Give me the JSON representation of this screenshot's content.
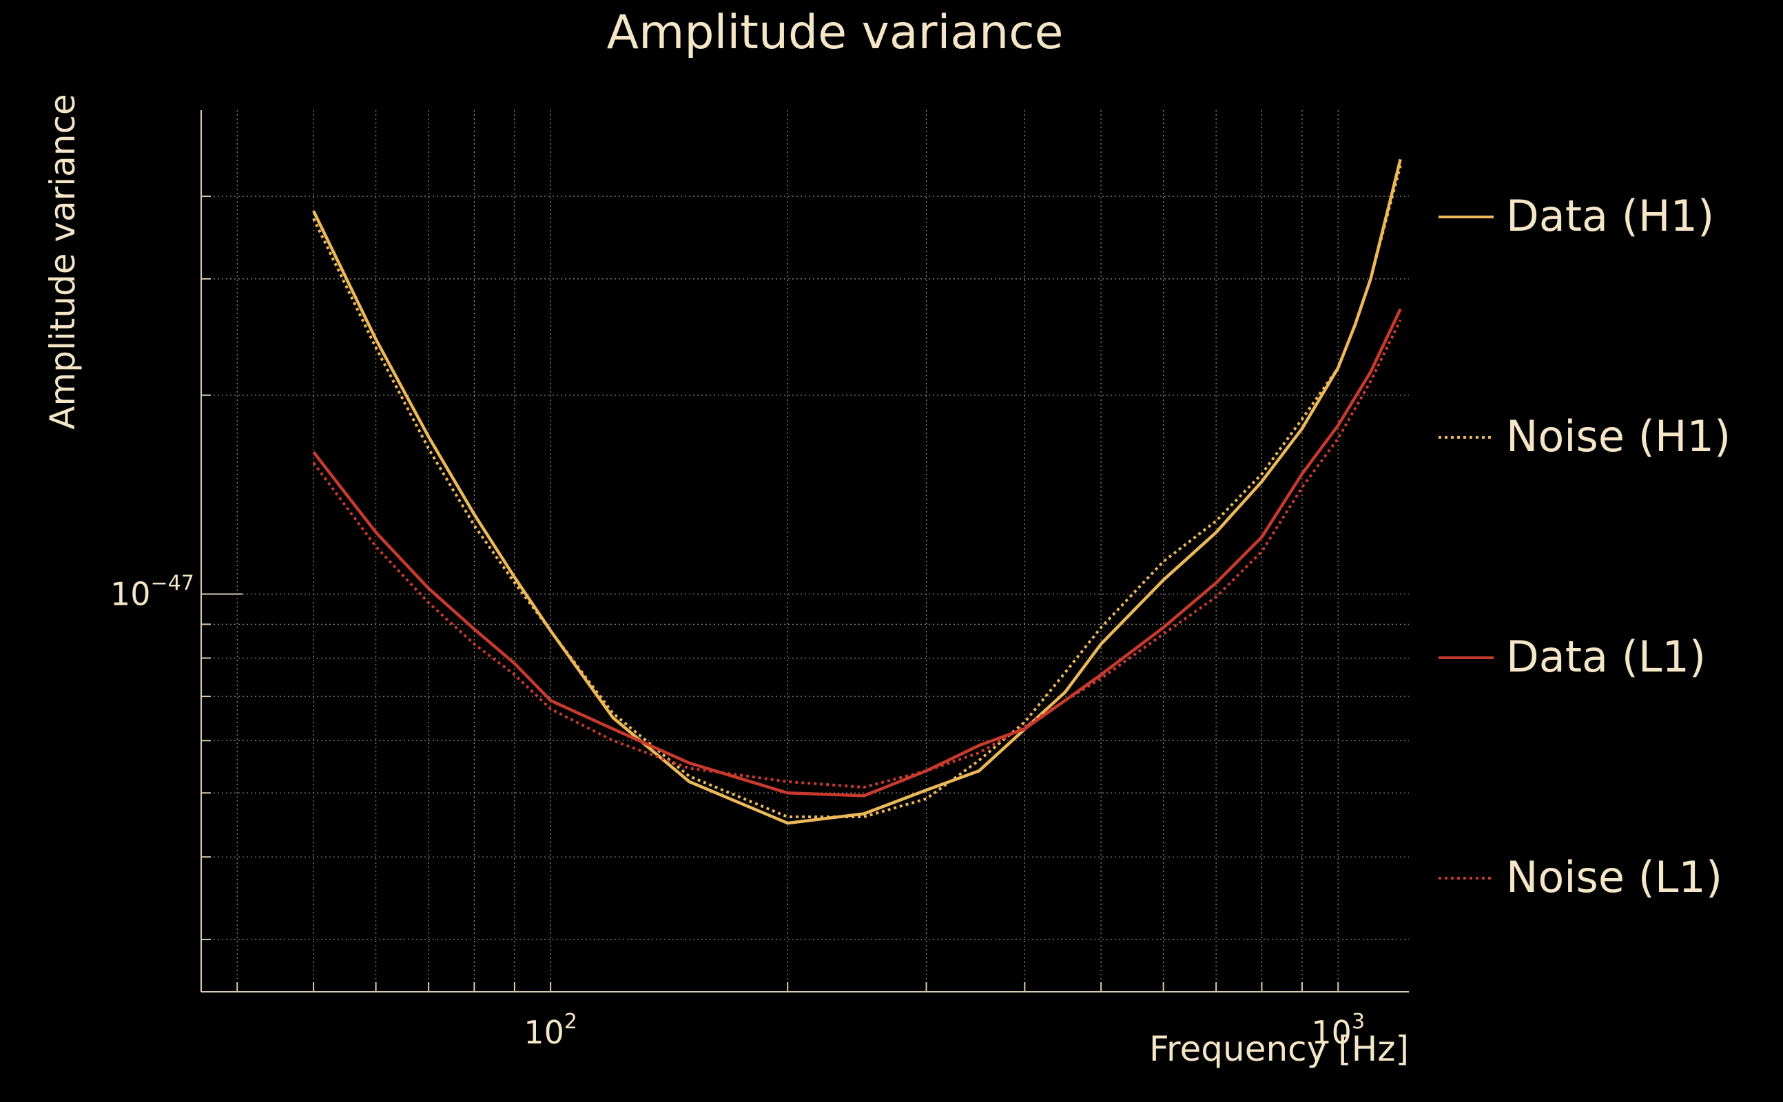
{
  "chart_data": {
    "type": "line",
    "title": "Amplitude variance",
    "xlabel": "Frequency [Hz]",
    "ylabel": "Amplitude variance",
    "x_scale": "log",
    "y_scale": "log",
    "xlim": [
      36,
      1230
    ],
    "ylim": [
      2.5e-48,
      5.4e-47
    ],
    "grid": true,
    "x_ticks": [
      {
        "value": 100,
        "base": "10",
        "exp": "2"
      },
      {
        "value": 1000,
        "base": "10",
        "exp": "3"
      }
    ],
    "y_ticks": [
      {
        "value": 1e-47,
        "base": "10",
        "exp": "−47"
      }
    ],
    "x_minor_ticks": [
      40,
      50,
      60,
      70,
      80,
      90,
      200,
      300,
      400,
      500,
      600,
      700,
      800,
      900
    ],
    "y_minor_ticks": [
      3e-48,
      4e-48,
      5e-48,
      6e-48,
      7e-48,
      8e-48,
      9e-48,
      2e-47,
      3e-47,
      4e-47
    ],
    "legend_position": "right",
    "series": [
      {
        "name": "Data (H1)",
        "color": "#ebb85a",
        "style": "solid",
        "x": [
          50,
          60,
          70,
          80,
          90,
          100,
          120,
          150,
          200,
          250,
          300,
          350,
          450,
          500,
          600,
          700,
          800,
          900,
          1000,
          1050,
          1100,
          1200
        ],
        "y": [
          3.8e-47,
          2.43e-47,
          1.73e-47,
          1.32e-47,
          1.06e-47,
          8.8e-48,
          6.5e-48,
          5.2e-48,
          4.5e-48,
          4.65e-48,
          5.05e-48,
          5.4e-48,
          7.1e-48,
          8.4e-48,
          1.05e-47,
          1.24e-47,
          1.48e-47,
          1.78e-47,
          2.2e-47,
          2.55e-47,
          3e-47,
          4.55e-47
        ]
      },
      {
        "name": "Noise (H1)",
        "color": "#ebb85a",
        "style": "dotted",
        "x": [
          50,
          60,
          70,
          80,
          90,
          100,
          120,
          150,
          200,
          250,
          300,
          350,
          400,
          450,
          500,
          600,
          700,
          800,
          900,
          1000,
          1050,
          1100,
          1200
        ],
        "y": [
          3.7e-47,
          2.36e-47,
          1.66e-47,
          1.27e-47,
          1.04e-47,
          8.8e-48,
          6.6e-48,
          5.3e-48,
          4.6e-48,
          4.6e-48,
          4.9e-48,
          5.6e-48,
          6.4e-48,
          7.6e-48,
          8.9e-48,
          1.12e-47,
          1.29e-47,
          1.52e-47,
          1.84e-47,
          2.2e-47,
          2.55e-47,
          3e-47,
          4.45e-47
        ]
      },
      {
        "name": "Data (L1)",
        "color": "#c83a2e",
        "style": "solid",
        "x": [
          50,
          60,
          70,
          80,
          90,
          100,
          120,
          150,
          200,
          250,
          300,
          350,
          400,
          450,
          500,
          600,
          700,
          800,
          900,
          1000,
          1100,
          1200
        ],
        "y": [
          1.64e-47,
          1.24e-47,
          1.02e-47,
          8.85e-48,
          7.85e-48,
          6.9e-48,
          6.25e-48,
          5.55e-48,
          5e-48,
          4.95e-48,
          5.4e-48,
          5.9e-48,
          6.25e-48,
          6.9e-48,
          7.55e-48,
          8.9e-48,
          1.04e-47,
          1.22e-47,
          1.52e-47,
          1.8e-47,
          2.17e-47,
          2.7e-47
        ]
      },
      {
        "name": "Noise (L1)",
        "color": "#c83a2e",
        "style": "dotted",
        "x": [
          50,
          60,
          70,
          80,
          90,
          100,
          120,
          150,
          200,
          250,
          300,
          350,
          400,
          450,
          500,
          600,
          700,
          800,
          900,
          1000,
          1100,
          1200
        ],
        "y": [
          1.58e-47,
          1.18e-47,
          9.7e-48,
          8.4e-48,
          7.55e-48,
          6.7e-48,
          6e-48,
          5.45e-48,
          5.2e-48,
          5.1e-48,
          5.4e-48,
          5.75e-48,
          6.3e-48,
          6.9e-48,
          7.45e-48,
          8.7e-48,
          9.9e-48,
          1.16e-47,
          1.45e-47,
          1.72e-47,
          2.1e-47,
          2.6e-47
        ]
      }
    ]
  }
}
